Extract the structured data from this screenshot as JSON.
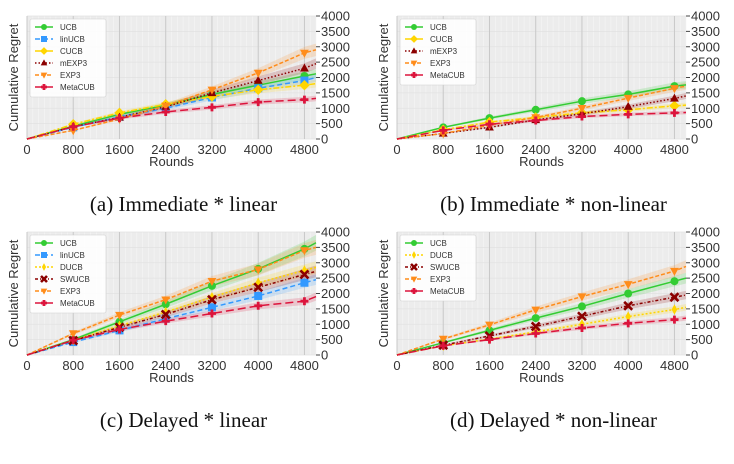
{
  "styles": {
    "UCB": {
      "color": "#33cc33",
      "marker": "circle",
      "dash": ""
    },
    "linUCB": {
      "color": "#3399ff",
      "marker": "square",
      "dash": "5,3"
    },
    "CUCB": {
      "color": "#ffd500",
      "marker": "diamond",
      "dash": "6,2,2,2"
    },
    "DUCB": {
      "color": "#ffd500",
      "marker": "thin-diamond",
      "dash": "2,2"
    },
    "mEXP3": {
      "color": "#8b0000",
      "marker": "triangle-up",
      "dash": "1.5,2"
    },
    "SWUCB": {
      "color": "#8b0000",
      "marker": "x",
      "dash": "3,2,1,2"
    },
    "EXP3": {
      "color": "#ff8c1a",
      "marker": "triangle-down",
      "dash": "4,2"
    },
    "MetaCUB": {
      "color": "#dc143c",
      "marker": "plus",
      "dash": "8,4"
    }
  },
  "chart_data": [
    {
      "type": "line",
      "caption": "(a) Immediate * linear",
      "xlabel": "Rounds",
      "ylabel": "Cumulative Regret",
      "xlim": [
        0,
        5000
      ],
      "ylim": [
        0,
        4000
      ],
      "xticks": [
        "0",
        "800",
        "1600",
        "2400",
        "3200",
        "4000",
        "4800"
      ],
      "yticks": [
        "0",
        "500",
        "1000",
        "1500",
        "2000",
        "2500",
        "3000",
        "3500",
        "4000"
      ],
      "grid": true,
      "legend": "top-left",
      "x": [
        0,
        800,
        1600,
        2400,
        3200,
        4000,
        4800,
        5000
      ],
      "series": [
        {
          "name": "UCB",
          "values": [
            0,
            420,
            800,
            1100,
            1450,
            1750,
            2050,
            2120
          ]
        },
        {
          "name": "linUCB",
          "values": [
            0,
            380,
            720,
            1000,
            1350,
            1650,
            1900,
            2000
          ]
        },
        {
          "name": "CUCB",
          "values": [
            0,
            480,
            850,
            1130,
            1380,
            1600,
            1750,
            1800
          ]
        },
        {
          "name": "mEXP3",
          "values": [
            0,
            400,
            700,
            1050,
            1500,
            1900,
            2300,
            2450
          ]
        },
        {
          "name": "EXP3",
          "values": [
            0,
            280,
            650,
            1080,
            1600,
            2150,
            2800,
            2900
          ]
        },
        {
          "name": "MetaCUB",
          "values": [
            0,
            400,
            680,
            880,
            1030,
            1200,
            1280,
            1320
          ]
        }
      ]
    },
    {
      "type": "line",
      "caption": "(b) Immediate * non-linear",
      "xlabel": "Rounds",
      "ylabel": "Cumulative Regret",
      "xlim": [
        0,
        5000
      ],
      "ylim": [
        0,
        4000
      ],
      "xticks": [
        "0",
        "800",
        "1600",
        "2400",
        "3200",
        "4000",
        "4800"
      ],
      "yticks": [
        "0",
        "500",
        "1000",
        "1500",
        "2000",
        "2500",
        "3000",
        "3500",
        "4000"
      ],
      "grid": true,
      "legend": "top-left",
      "x": [
        0,
        800,
        1600,
        2400,
        3200,
        4000,
        4800,
        5000
      ],
      "series": [
        {
          "name": "UCB",
          "values": [
            0,
            380,
            680,
            950,
            1230,
            1450,
            1720,
            1760
          ]
        },
        {
          "name": "CUCB",
          "values": [
            0,
            300,
            550,
            700,
            850,
            950,
            1080,
            1100
          ]
        },
        {
          "name": "mEXP3",
          "values": [
            0,
            180,
            380,
            620,
            820,
            1050,
            1320,
            1400
          ]
        },
        {
          "name": "EXP3",
          "values": [
            0,
            180,
            450,
            700,
            1000,
            1330,
            1650,
            1720
          ]
        },
        {
          "name": "MetaCUB",
          "values": [
            0,
            280,
            480,
            600,
            730,
            800,
            850,
            860
          ]
        }
      ]
    },
    {
      "type": "line",
      "caption": "(c) Delayed * linear",
      "xlabel": "Rounds",
      "ylabel": "Cumulative Regret",
      "xlim": [
        0,
        5000
      ],
      "ylim": [
        0,
        4000
      ],
      "xticks": [
        "0",
        "800",
        "1600",
        "2400",
        "3200",
        "4000",
        "4800"
      ],
      "yticks": [
        "0",
        "500",
        "1000",
        "1500",
        "2000",
        "2500",
        "3000",
        "3500",
        "4000"
      ],
      "grid": true,
      "legend": "top-left",
      "x": [
        0,
        800,
        1600,
        2400,
        3200,
        4000,
        4800,
        5000
      ],
      "series": [
        {
          "name": "UCB",
          "values": [
            0,
            500,
            1080,
            1650,
            2250,
            2800,
            3450,
            3650
          ]
        },
        {
          "name": "linUCB",
          "values": [
            0,
            420,
            800,
            1180,
            1550,
            1920,
            2350,
            2450
          ]
        },
        {
          "name": "DUCB",
          "values": [
            0,
            480,
            950,
            1400,
            1880,
            2350,
            2750,
            2850
          ]
        },
        {
          "name": "SWUCB",
          "values": [
            0,
            470,
            900,
            1320,
            1800,
            2200,
            2620,
            2720
          ]
        },
        {
          "name": "EXP3",
          "values": [
            0,
            700,
            1300,
            1800,
            2400,
            2780,
            3400,
            3500
          ]
        },
        {
          "name": "MetaCUB",
          "values": [
            0,
            480,
            830,
            1100,
            1350,
            1600,
            1750,
            1900
          ]
        }
      ]
    },
    {
      "type": "line",
      "caption": "(d) Delayed * non-linear",
      "xlabel": "Rounds",
      "ylabel": "Cumulative Regret",
      "xlim": [
        0,
        5000
      ],
      "ylim": [
        0,
        4000
      ],
      "xticks": [
        "0",
        "800",
        "1600",
        "2400",
        "3200",
        "4000",
        "4800"
      ],
      "yticks": [
        "0",
        "500",
        "1000",
        "1500",
        "2000",
        "2500",
        "3000",
        "3500",
        "4000"
      ],
      "grid": true,
      "legend": "top-left",
      "x": [
        0,
        800,
        1600,
        2400,
        3200,
        4000,
        4800,
        5000
      ],
      "series": [
        {
          "name": "UCB",
          "values": [
            0,
            400,
            800,
            1200,
            1580,
            2000,
            2400,
            2500
          ]
        },
        {
          "name": "DUCB",
          "values": [
            0,
            300,
            520,
            750,
            1000,
            1250,
            1480,
            1550
          ]
        },
        {
          "name": "SWUCB",
          "values": [
            0,
            320,
            620,
            930,
            1260,
            1600,
            1880,
            1950
          ]
        },
        {
          "name": "EXP3",
          "values": [
            0,
            520,
            980,
            1470,
            1900,
            2300,
            2730,
            2880
          ]
        },
        {
          "name": "MetaCUB",
          "values": [
            0,
            300,
            500,
            700,
            880,
            1030,
            1150,
            1200
          ]
        }
      ]
    }
  ]
}
